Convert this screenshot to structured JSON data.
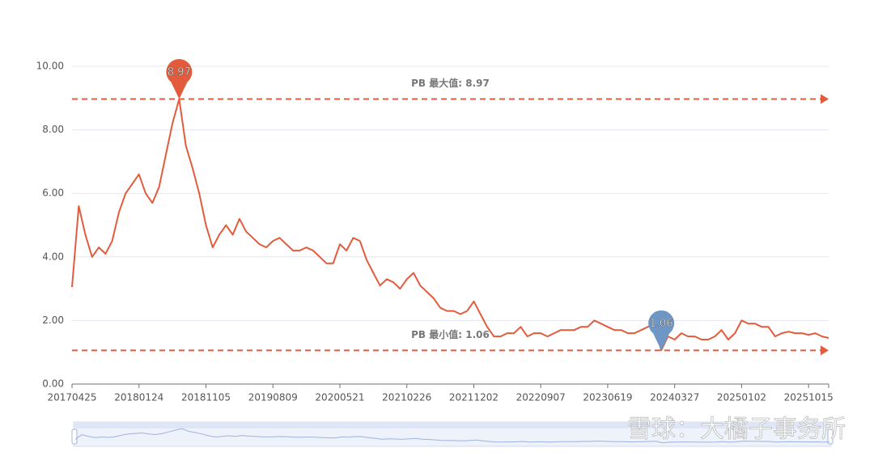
{
  "chart_data": {
    "type": "line",
    "categories": [
      "20170425",
      null,
      null,
      null,
      null,
      null,
      null,
      null,
      null,
      null,
      "20180124",
      null,
      null,
      null,
      null,
      null,
      null,
      null,
      null,
      null,
      "20181105",
      null,
      null,
      null,
      null,
      null,
      null,
      null,
      null,
      null,
      "20190809",
      null,
      null,
      null,
      null,
      null,
      null,
      null,
      null,
      null,
      "20200521",
      null,
      null,
      null,
      null,
      null,
      null,
      null,
      null,
      null,
      "20210226",
      null,
      null,
      null,
      null,
      null,
      null,
      null,
      null,
      null,
      "20211202",
      null,
      null,
      null,
      null,
      null,
      null,
      null,
      null,
      null,
      "20220907",
      null,
      null,
      null,
      null,
      null,
      null,
      null,
      null,
      null,
      "20230619",
      null,
      null,
      null,
      null,
      null,
      null,
      null,
      null,
      null,
      "20240327",
      null,
      null,
      null,
      null,
      null,
      null,
      null,
      null,
      null,
      "20250102",
      null,
      null,
      null,
      null,
      null,
      null,
      null,
      null,
      null,
      "20251015",
      null,
      null,
      null
    ],
    "series": [
      {
        "color": "#e35b3d",
        "values": [
          3.05,
          5.6,
          4.7,
          4.0,
          4.3,
          4.1,
          4.5,
          5.4,
          6.0,
          6.3,
          6.6,
          6.0,
          5.7,
          6.2,
          7.2,
          8.2,
          8.97,
          7.5,
          6.8,
          6.0,
          5.0,
          4.3,
          4.7,
          5.0,
          4.7,
          5.2,
          4.8,
          4.6,
          4.4,
          4.3,
          4.5,
          4.6,
          4.4,
          4.2,
          4.2,
          4.3,
          4.2,
          4.0,
          3.8,
          3.8,
          4.4,
          4.2,
          4.6,
          4.5,
          3.9,
          3.5,
          3.1,
          3.3,
          3.2,
          3.0,
          3.3,
          3.5,
          3.1,
          2.9,
          2.7,
          2.4,
          2.3,
          2.3,
          2.2,
          2.3,
          2.6,
          2.2,
          1.8,
          1.5,
          1.5,
          1.6,
          1.6,
          1.8,
          1.5,
          1.6,
          1.6,
          1.5,
          1.6,
          1.7,
          1.7,
          1.7,
          1.8,
          1.8,
          2.0,
          1.9,
          1.8,
          1.7,
          1.7,
          1.6,
          1.6,
          1.7,
          1.8,
          1.9,
          1.06,
          1.5,
          1.4,
          1.6,
          1.5,
          1.5,
          1.4,
          1.4,
          1.5,
          1.7,
          1.4,
          1.6,
          2.0,
          1.9,
          1.9,
          1.8,
          1.8,
          1.5,
          1.6,
          1.65,
          1.6,
          1.6,
          1.55,
          1.6,
          1.5,
          1.45
        ]
      }
    ],
    "mark_lines": [
      {
        "label": "PB 最大值: 8.97",
        "value": 8.97,
        "color": "#e35b3d"
      },
      {
        "label": "PB 最小值: 1.06",
        "value": 1.06,
        "color": "#e35b3d"
      }
    ],
    "min_pin_color": "#6f97c6",
    "ylim": [
      0,
      10
    ],
    "yticks": [
      {
        "value": 0,
        "label": "0.00"
      },
      {
        "value": 2,
        "label": "2.00"
      },
      {
        "value": 4,
        "label": "4.00"
      },
      {
        "value": 6,
        "label": "6.00"
      },
      {
        "value": 8,
        "label": "8.00"
      },
      {
        "value": 10,
        "label": "10.00"
      }
    ],
    "grid": true,
    "watermark": "雪球：大橘子事务所"
  }
}
